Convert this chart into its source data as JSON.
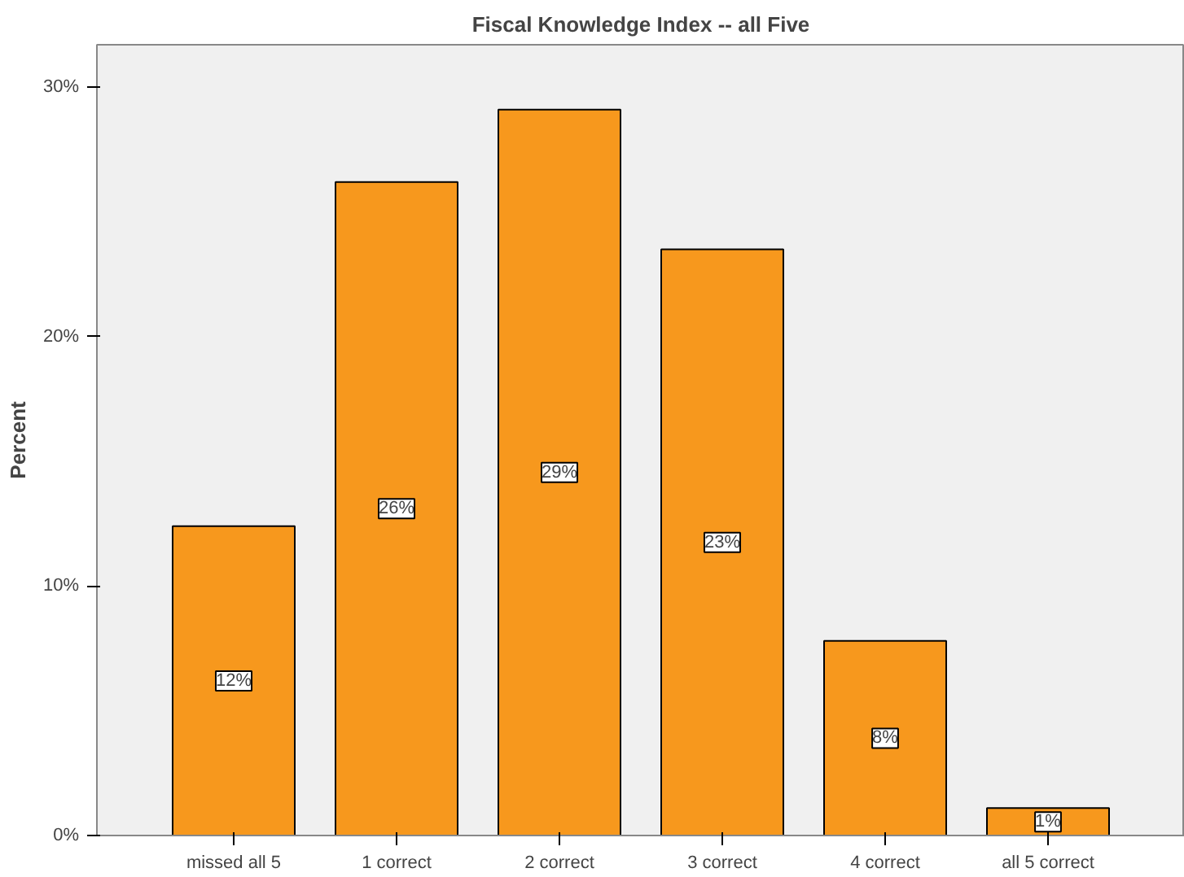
{
  "chart_data": {
    "type": "bar",
    "title": "Fiscal Knowledge Index -- all Five",
    "ylabel": "Percent",
    "categories": [
      "missed all 5",
      "1 correct",
      "2 correct",
      "3 correct",
      "4 correct",
      "all 5 correct"
    ],
    "values": [
      12.4,
      26.2,
      29.1,
      23.5,
      7.8,
      1.1
    ],
    "value_labels": [
      "12%",
      "26%",
      "29%",
      "23%",
      "8%",
      "1%"
    ],
    "color": "#f7981d",
    "ylim": [
      0,
      31.7
    ],
    "yticks": [
      {
        "value": 0,
        "label": "0%"
      },
      {
        "value": 10,
        "label": "10%"
      },
      {
        "value": 20,
        "label": "20%"
      },
      {
        "value": 30,
        "label": "30%"
      }
    ],
    "grid": false
  }
}
